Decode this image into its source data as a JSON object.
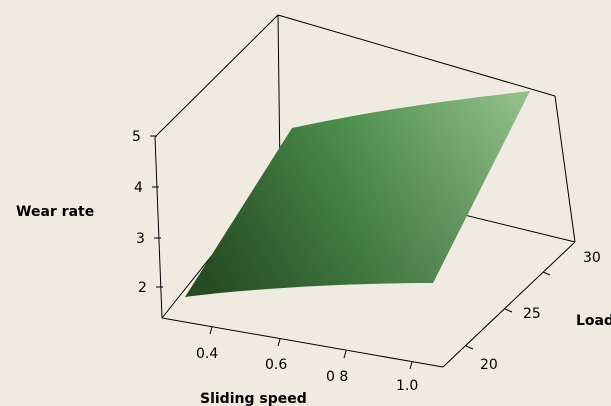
{
  "chart_data": {
    "type": "surface",
    "title": "",
    "xlabel": "Sliding speed",
    "ylabel": "Load",
    "zlabel": "Wear rate",
    "x_ticks": [
      "0.4",
      "0.6",
      "0 8",
      "1.0"
    ],
    "y_ticks": [
      "20",
      "25",
      "30"
    ],
    "z_ticks": [
      "2",
      "3",
      "4",
      "5"
    ],
    "xlim": [
      0.25,
      1.1
    ],
    "ylim": [
      17,
      33
    ],
    "zlim": [
      1.6,
      5.1
    ],
    "surface_corners": [
      {
        "x": 0.3,
        "y": 17,
        "z": 1.8
      },
      {
        "x": 1.05,
        "y": 17,
        "z": 2.1
      },
      {
        "x": 1.05,
        "y": 33,
        "z": 4.0
      },
      {
        "x": 0.3,
        "y": 33,
        "z": 4.1
      }
    ],
    "colors": {
      "background": "#efebe0",
      "surface_dark": "#2e5a2b",
      "surface_mid": "#4b8e4b",
      "surface_light": "#93c089",
      "frame": "#000000"
    }
  }
}
